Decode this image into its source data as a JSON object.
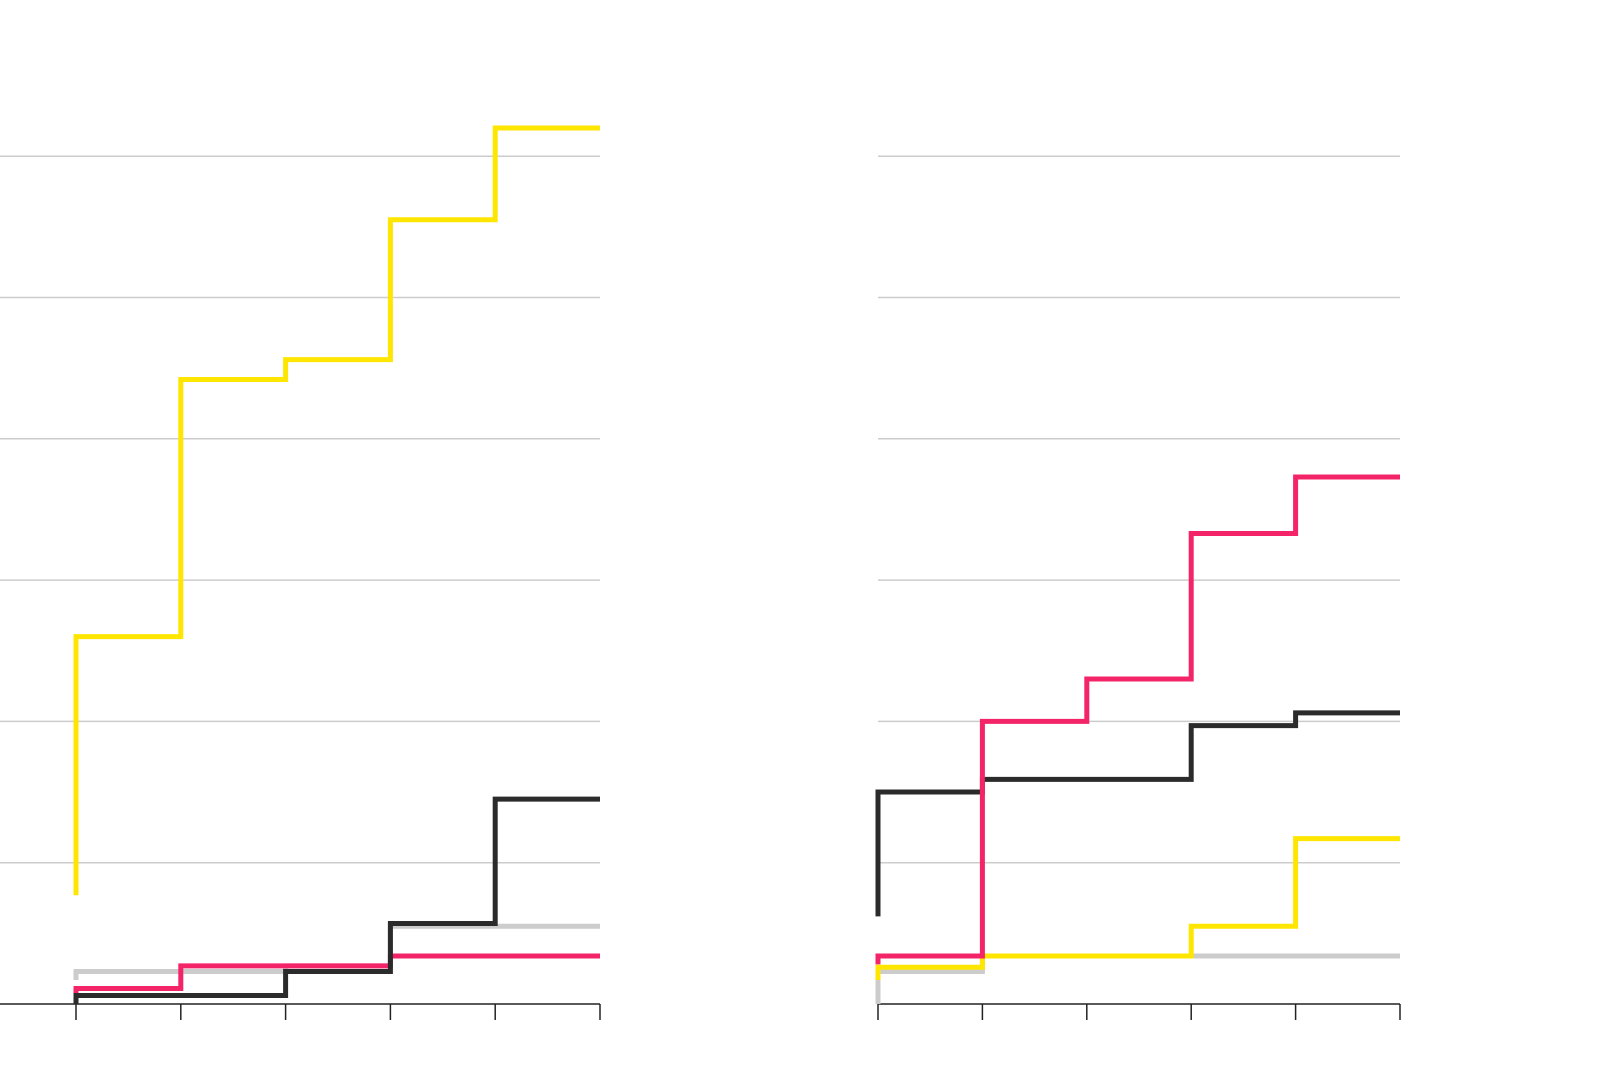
{
  "colors": {
    "yellow": "#ffe600",
    "pink": "#f42468",
    "black": "#2b2b2b",
    "gray": "#cccccc"
  },
  "chart_data": [
    {
      "type": "line",
      "step": true,
      "title": "",
      "xlabel": "",
      "ylabel": "",
      "x": [
        0,
        1,
        2,
        3,
        4,
        5
      ],
      "xlim": [
        0,
        5
      ],
      "ylim": [
        0,
        6
      ],
      "gridlines": [
        1,
        2,
        3,
        4,
        5,
        6
      ],
      "series": [
        {
          "name": "yellow",
          "color": "#ffe600",
          "start": 0.77,
          "values": [
            2.6,
            4.42,
            4.56,
            5.55,
            6.2,
            6.2
          ]
        },
        {
          "name": "gray",
          "color": "#cccccc",
          "start": 0.17,
          "values": [
            0.23,
            0.23,
            0.27,
            0.55,
            0.55,
            0.55
          ]
        },
        {
          "name": "pink",
          "color": "#f42468",
          "start": 0.04,
          "values": [
            0.11,
            0.27,
            0.27,
            0.34,
            0.34,
            0.34
          ]
        },
        {
          "name": "black",
          "color": "#2b2b2b",
          "start": 0.0,
          "values": [
            0.06,
            0.06,
            0.23,
            0.57,
            1.45,
            1.45
          ]
        }
      ]
    },
    {
      "type": "line",
      "step": true,
      "title": "",
      "xlabel": "",
      "ylabel": "",
      "x": [
        0,
        1,
        2,
        3,
        4,
        5
      ],
      "xlim": [
        0,
        5
      ],
      "ylim": [
        0,
        6
      ],
      "gridlines": [
        1,
        2,
        3,
        4,
        5,
        6
      ],
      "series": [
        {
          "name": "gray",
          "color": "#cccccc",
          "start": 0.0,
          "values": [
            0.23,
            0.34,
            0.34,
            0.34,
            0.34,
            0.34
          ]
        },
        {
          "name": "yellow",
          "color": "#ffe600",
          "start": 0.17,
          "values": [
            0.26,
            0.34,
            0.34,
            0.55,
            1.17,
            1.17
          ]
        },
        {
          "name": "black",
          "color": "#2b2b2b",
          "start": 0.62,
          "values": [
            1.5,
            1.59,
            1.59,
            1.97,
            2.06,
            2.06
          ]
        },
        {
          "name": "pink",
          "color": "#f42468",
          "start": 0.28,
          "values": [
            0.34,
            2.0,
            2.3,
            3.33,
            3.73,
            3.73
          ]
        }
      ]
    }
  ]
}
